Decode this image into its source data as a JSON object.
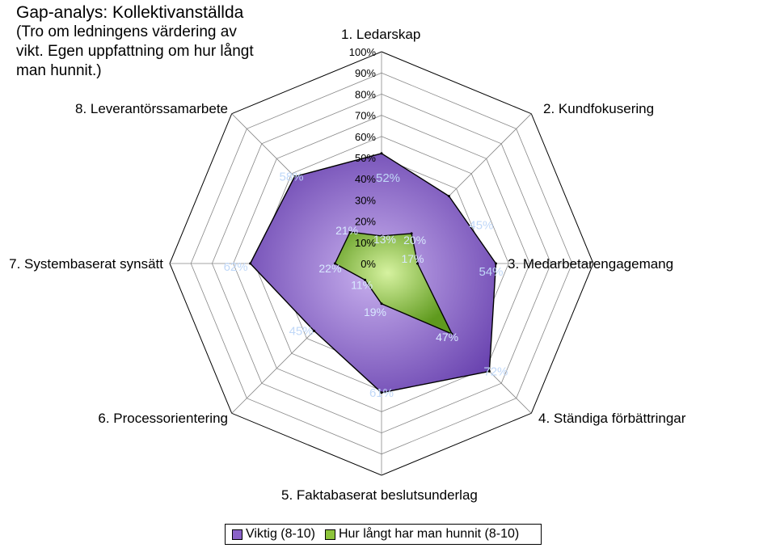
{
  "chart_data": {
    "type": "radar",
    "title": "Gap-analys: Kollektivanställda",
    "subtitle": " (Tro om ledningens värdering av\nvikt. Egen uppfattning om hur långt\nman hunnit.)",
    "categories": [
      "1. Ledarskap",
      "2. Kundfokusering",
      "3. Medarbetarengagemang",
      "4. Ständiga förbättringar",
      "5. Faktabaserat beslutsunderlag",
      "6. Processorientering",
      "7. Systembaserat synsätt",
      "8. Leverantörssamarbete"
    ],
    "rlim": [
      0,
      100
    ],
    "ticks": [
      "0%",
      "10%",
      "20%",
      "30%",
      "40%",
      "50%",
      "60%",
      "70%",
      "80%",
      "90%",
      "100%"
    ],
    "series": [
      {
        "name": "Viktig (8-10)",
        "values": [
          52,
          45,
          54,
          72,
          61,
          45,
          62,
          58
        ],
        "labels": [
          "52%",
          "45%",
          "54%",
          "72%",
          "61%",
          "45%",
          "62%",
          "58%"
        ],
        "color": "#8a62c8"
      },
      {
        "name": "Hur långt har man hunnit (8-10)",
        "values": [
          13,
          20,
          17,
          47,
          19,
          11,
          22,
          21
        ],
        "labels": [
          "13%",
          "20%",
          "17%",
          "47%",
          "19%",
          "11%",
          "22%",
          "21%"
        ],
        "color": "#8cc43a"
      }
    ],
    "legend_position": "bottom",
    "grid": true
  }
}
